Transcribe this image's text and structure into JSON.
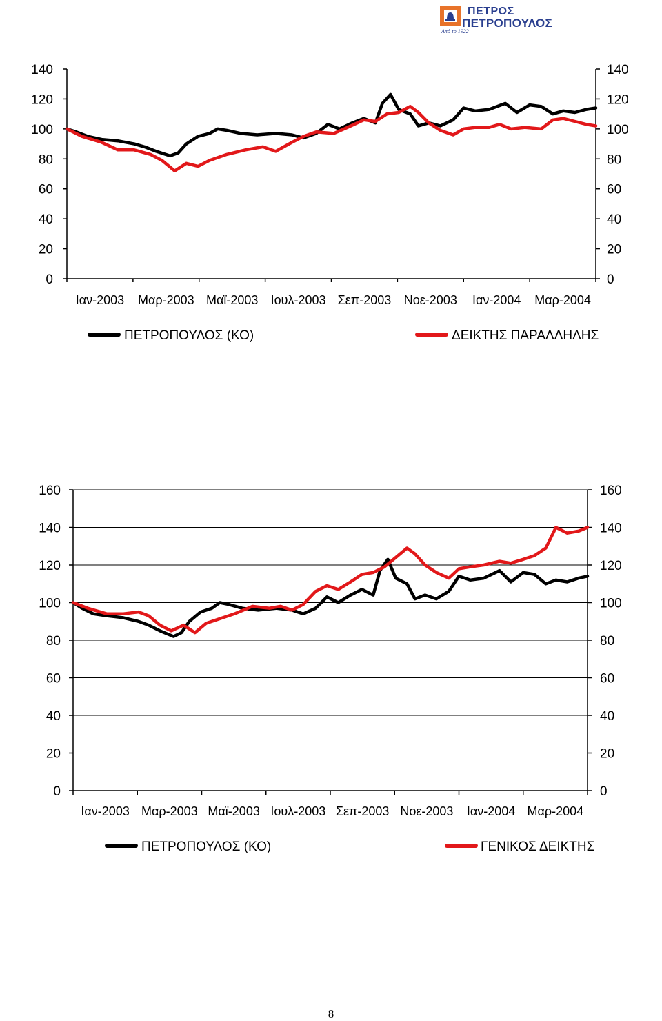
{
  "logo": {
    "line1": "ΠΕΤΡΟΣ",
    "line2": "ΠΕΤΡΟΠΟΥΛΟΣ",
    "sub": "Από το 1922",
    "colors": {
      "brand_blue": "#2a3f8f",
      "brand_orange": "#e8732a"
    }
  },
  "page_number": "8",
  "chart_data": [
    {
      "type": "line",
      "title": "",
      "ylim": [
        0,
        140
      ],
      "yticks": [
        0,
        20,
        40,
        60,
        80,
        100,
        120,
        140
      ],
      "x_tick_labels": [
        "Ιαν-2003",
        "Μαρ-2003",
        "Μαϊ-2003",
        "Ιουλ-2003",
        "Σεπ-2003",
        "Νοε-2003",
        "Ιαν-2004",
        "Μαρ-2004"
      ],
      "x_start": "2003-01-02",
      "x_end": "2004-04-02",
      "grid": false,
      "legend_placement": "bottom",
      "series": [
        {
          "name": "ΠΕΤΡΟΠΟΥΛΟΣ (ΚΟ)",
          "color": "#000000",
          "points": [
            [
              "2003-01-02",
              100
            ],
            [
              "2003-01-10",
              98
            ],
            [
              "2003-01-20",
              95
            ],
            [
              "2003-02-01",
              93
            ],
            [
              "2003-02-15",
              92
            ],
            [
              "2003-03-01",
              90
            ],
            [
              "2003-03-10",
              88
            ],
            [
              "2003-03-20",
              85
            ],
            [
              "2003-04-01",
              82
            ],
            [
              "2003-04-08",
              84
            ],
            [
              "2003-04-15",
              90
            ],
            [
              "2003-04-25",
              95
            ],
            [
              "2003-05-05",
              97
            ],
            [
              "2003-05-12",
              100
            ],
            [
              "2003-05-20",
              99
            ],
            [
              "2003-06-01",
              97
            ],
            [
              "2003-06-15",
              96
            ],
            [
              "2003-07-01",
              97
            ],
            [
              "2003-07-15",
              96
            ],
            [
              "2003-07-25",
              94
            ],
            [
              "2003-08-05",
              97
            ],
            [
              "2003-08-15",
              103
            ],
            [
              "2003-08-25",
              100
            ],
            [
              "2003-09-05",
              104
            ],
            [
              "2003-09-15",
              107
            ],
            [
              "2003-09-25",
              104
            ],
            [
              "2003-10-01",
              117
            ],
            [
              "2003-10-08",
              123
            ],
            [
              "2003-10-15",
              113
            ],
            [
              "2003-10-25",
              110
            ],
            [
              "2003-11-01",
              102
            ],
            [
              "2003-11-10",
              104
            ],
            [
              "2003-11-20",
              102
            ],
            [
              "2003-12-01",
              106
            ],
            [
              "2003-12-10",
              114
            ],
            [
              "2003-12-20",
              112
            ],
            [
              "2004-01-01",
              113
            ],
            [
              "2004-01-15",
              117
            ],
            [
              "2004-01-25",
              111
            ],
            [
              "2004-02-05",
              116
            ],
            [
              "2004-02-15",
              115
            ],
            [
              "2004-02-25",
              110
            ],
            [
              "2004-03-05",
              112
            ],
            [
              "2004-03-15",
              111
            ],
            [
              "2004-03-25",
              113
            ],
            [
              "2004-04-02",
              114
            ]
          ]
        },
        {
          "name": "ΔΕΙΚΤΗΣ ΠΑΡΑΛΛΗΛΗΣ",
          "color": "#e2181a",
          "points": [
            [
              "2003-01-02",
              100
            ],
            [
              "2003-01-15",
              95
            ],
            [
              "2003-02-01",
              91
            ],
            [
              "2003-02-15",
              86
            ],
            [
              "2003-03-01",
              86
            ],
            [
              "2003-03-15",
              83
            ],
            [
              "2003-03-25",
              79
            ],
            [
              "2003-04-05",
              72
            ],
            [
              "2003-04-15",
              77
            ],
            [
              "2003-04-25",
              75
            ],
            [
              "2003-05-05",
              79
            ],
            [
              "2003-05-20",
              83
            ],
            [
              "2003-06-05",
              86
            ],
            [
              "2003-06-20",
              88
            ],
            [
              "2003-07-01",
              85
            ],
            [
              "2003-07-15",
              91
            ],
            [
              "2003-07-25",
              95
            ],
            [
              "2003-08-05",
              98
            ],
            [
              "2003-08-20",
              97
            ],
            [
              "2003-09-01",
              101
            ],
            [
              "2003-09-15",
              106
            ],
            [
              "2003-09-25",
              105
            ],
            [
              "2003-10-05",
              110
            ],
            [
              "2003-10-15",
              111
            ],
            [
              "2003-10-25",
              115
            ],
            [
              "2003-11-01",
              111
            ],
            [
              "2003-11-10",
              104
            ],
            [
              "2003-11-20",
              99
            ],
            [
              "2003-12-01",
              96
            ],
            [
              "2003-12-10",
              100
            ],
            [
              "2003-12-20",
              101
            ],
            [
              "2004-01-01",
              101
            ],
            [
              "2004-01-10",
              103
            ],
            [
              "2004-01-20",
              100
            ],
            [
              "2004-02-01",
              101
            ],
            [
              "2004-02-15",
              100
            ],
            [
              "2004-02-25",
              106
            ],
            [
              "2004-03-05",
              107
            ],
            [
              "2004-03-15",
              105
            ],
            [
              "2004-03-25",
              103
            ],
            [
              "2004-04-02",
              102
            ]
          ]
        }
      ]
    },
    {
      "type": "line",
      "title": "",
      "ylim": [
        0,
        160
      ],
      "yticks": [
        0,
        20,
        40,
        60,
        80,
        100,
        120,
        140,
        160
      ],
      "x_tick_labels": [
        "Ιαν-2003",
        "Μαρ-2003",
        "Μαϊ-2003",
        "Ιουλ-2003",
        "Σεπ-2003",
        "Νοε-2003",
        "Ιαν-2004",
        "Μαρ-2004"
      ],
      "x_start": "2003-01-02",
      "x_end": "2004-04-02",
      "grid": true,
      "legend_placement": "bottom",
      "series": [
        {
          "name": "ΠΕΤΡΟΠΟΥΛΟΣ (ΚΟ)",
          "color": "#000000",
          "points": [
            [
              "2003-01-02",
              100
            ],
            [
              "2003-01-10",
              97
            ],
            [
              "2003-01-20",
              94
            ],
            [
              "2003-02-01",
              93
            ],
            [
              "2003-02-15",
              92
            ],
            [
              "2003-03-01",
              90
            ],
            [
              "2003-03-10",
              88
            ],
            [
              "2003-03-20",
              85
            ],
            [
              "2003-04-01",
              82
            ],
            [
              "2003-04-08",
              84
            ],
            [
              "2003-04-15",
              90
            ],
            [
              "2003-04-25",
              95
            ],
            [
              "2003-05-05",
              97
            ],
            [
              "2003-05-12",
              100
            ],
            [
              "2003-05-20",
              99
            ],
            [
              "2003-06-01",
              97
            ],
            [
              "2003-06-15",
              96
            ],
            [
              "2003-07-01",
              97
            ],
            [
              "2003-07-15",
              96
            ],
            [
              "2003-07-25",
              94
            ],
            [
              "2003-08-05",
              97
            ],
            [
              "2003-08-15",
              103
            ],
            [
              "2003-08-25",
              100
            ],
            [
              "2003-09-05",
              104
            ],
            [
              "2003-09-15",
              107
            ],
            [
              "2003-09-25",
              104
            ],
            [
              "2003-10-01",
              117
            ],
            [
              "2003-10-08",
              123
            ],
            [
              "2003-10-15",
              113
            ],
            [
              "2003-10-25",
              110
            ],
            [
              "2003-11-01",
              102
            ],
            [
              "2003-11-10",
              104
            ],
            [
              "2003-11-20",
              102
            ],
            [
              "2003-12-01",
              106
            ],
            [
              "2003-12-10",
              114
            ],
            [
              "2003-12-20",
              112
            ],
            [
              "2004-01-01",
              113
            ],
            [
              "2004-01-15",
              117
            ],
            [
              "2004-01-25",
              111
            ],
            [
              "2004-02-05",
              116
            ],
            [
              "2004-02-15",
              115
            ],
            [
              "2004-02-25",
              110
            ],
            [
              "2004-03-05",
              112
            ],
            [
              "2004-03-15",
              111
            ],
            [
              "2004-03-25",
              113
            ],
            [
              "2004-04-02",
              114
            ]
          ]
        },
        {
          "name": "ΓΕΝΙΚΟΣ ΔΕΙΚΤΗΣ",
          "color": "#e2181a",
          "points": [
            [
              "2003-01-02",
              100
            ],
            [
              "2003-01-15",
              97
            ],
            [
              "2003-02-01",
              94
            ],
            [
              "2003-02-15",
              94
            ],
            [
              "2003-03-01",
              95
            ],
            [
              "2003-03-10",
              93
            ],
            [
              "2003-03-20",
              88
            ],
            [
              "2003-03-30",
              85
            ],
            [
              "2003-04-10",
              88
            ],
            [
              "2003-04-20",
              84
            ],
            [
              "2003-04-30",
              89
            ],
            [
              "2003-05-10",
              91
            ],
            [
              "2003-05-25",
              94
            ],
            [
              "2003-06-10",
              98
            ],
            [
              "2003-06-25",
              97
            ],
            [
              "2003-07-05",
              98
            ],
            [
              "2003-07-15",
              96
            ],
            [
              "2003-07-25",
              99
            ],
            [
              "2003-08-05",
              106
            ],
            [
              "2003-08-15",
              109
            ],
            [
              "2003-08-25",
              107
            ],
            [
              "2003-09-05",
              111
            ],
            [
              "2003-09-15",
              115
            ],
            [
              "2003-09-25",
              116
            ],
            [
              "2003-10-05",
              119
            ],
            [
              "2003-10-15",
              124
            ],
            [
              "2003-10-25",
              129
            ],
            [
              "2003-11-01",
              126
            ],
            [
              "2003-11-10",
              120
            ],
            [
              "2003-11-20",
              116
            ],
            [
              "2003-12-01",
              113
            ],
            [
              "2003-12-10",
              118
            ],
            [
              "2003-12-20",
              119
            ],
            [
              "2004-01-01",
              120
            ],
            [
              "2004-01-15",
              122
            ],
            [
              "2004-01-25",
              121
            ],
            [
              "2004-02-05",
              123
            ],
            [
              "2004-02-15",
              125
            ],
            [
              "2004-02-25",
              129
            ],
            [
              "2004-03-05",
              140
            ],
            [
              "2004-03-15",
              137
            ],
            [
              "2004-03-25",
              138
            ],
            [
              "2004-04-02",
              140
            ]
          ]
        }
      ]
    }
  ]
}
